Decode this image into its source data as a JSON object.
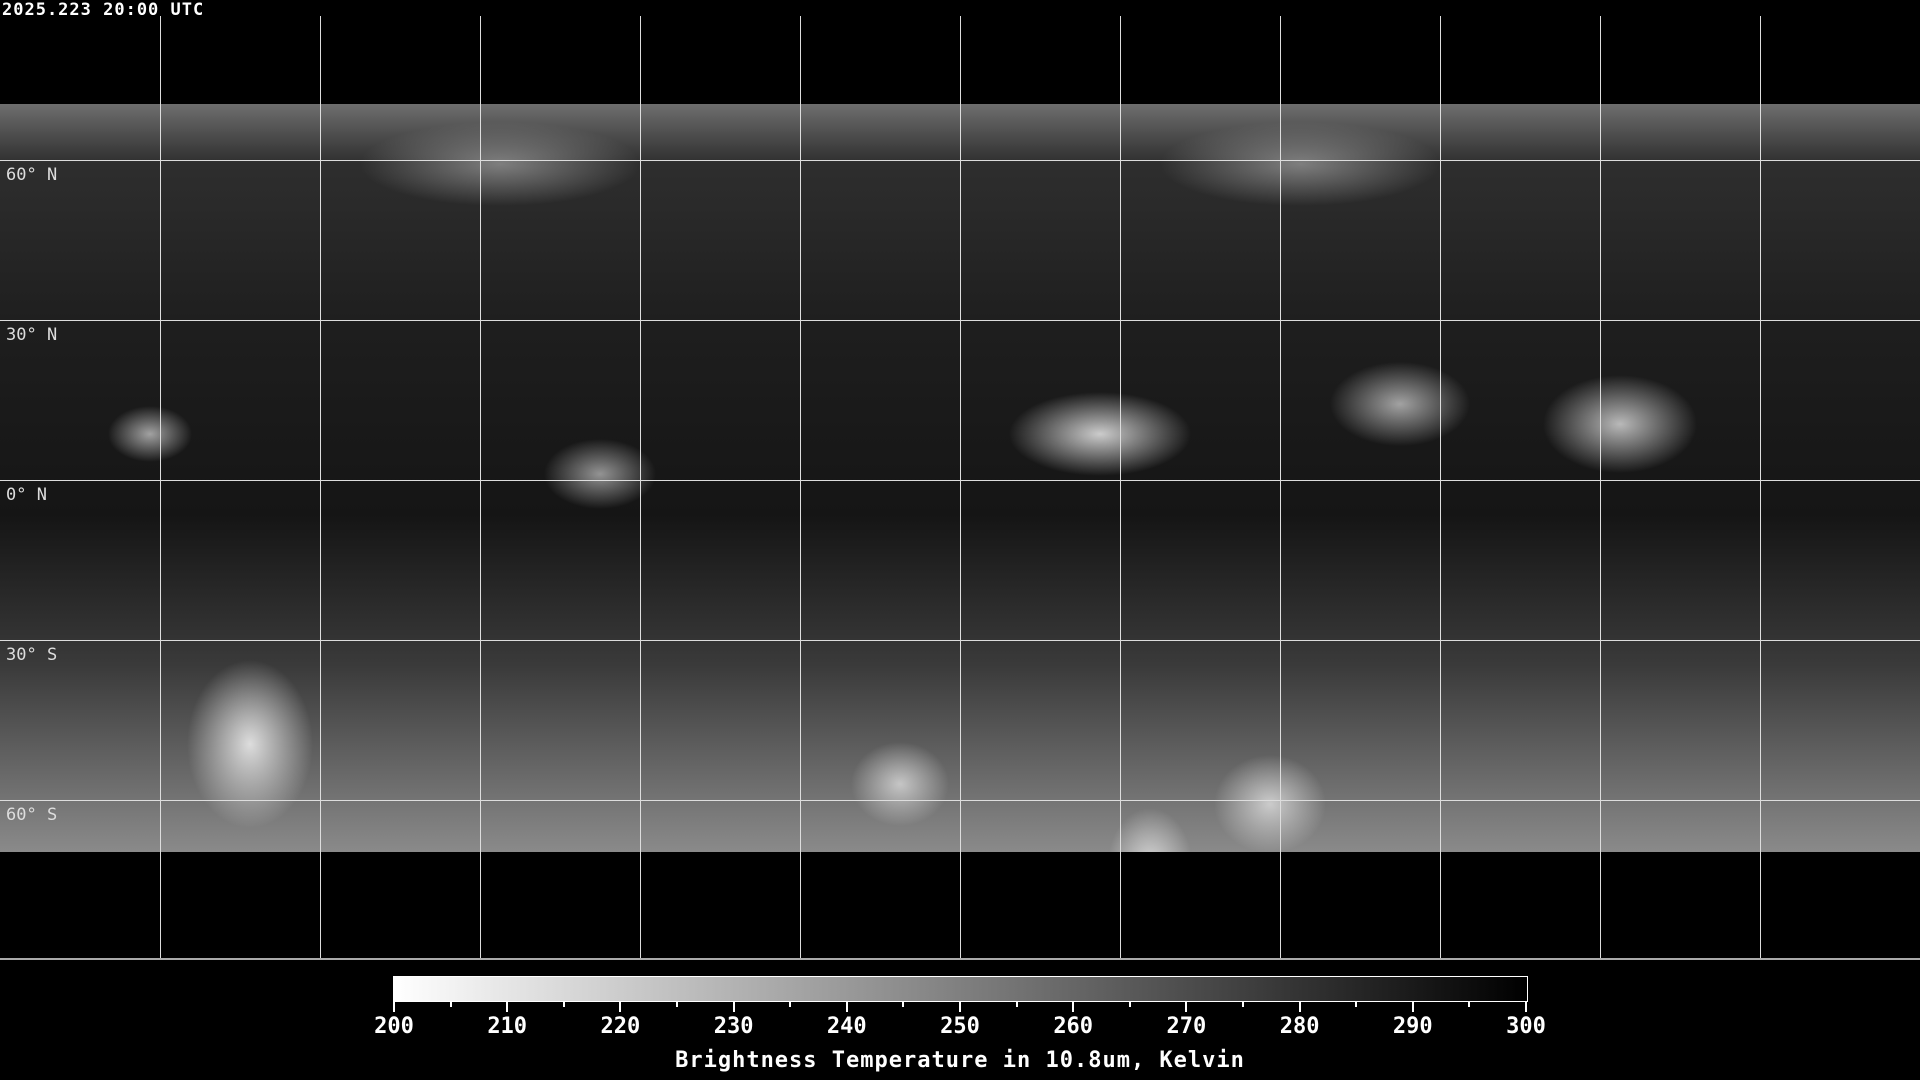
{
  "timestamp": "2025.223 20:00 UTC",
  "map": {
    "projection": "equirectangular",
    "longitude_gridlines_deg": [
      -150,
      -120,
      -90,
      -60,
      -30,
      0,
      30,
      60,
      90,
      120,
      150
    ],
    "latitude_gridlines": [
      {
        "lat": 60,
        "label": "60° N"
      },
      {
        "lat": 30,
        "label": "30° N"
      },
      {
        "lat": 0,
        "label": "0° N"
      },
      {
        "lat": -30,
        "label": "30° S"
      },
      {
        "lat": -60,
        "label": "60° S"
      }
    ]
  },
  "colorbar": {
    "min": 200,
    "max": 300,
    "colormap": [
      "#ffffff",
      "#000000"
    ],
    "tick_labels": [
      "200",
      "210",
      "220",
      "230",
      "240",
      "250",
      "260",
      "270",
      "280",
      "290",
      "300"
    ],
    "title": "Brightness Temperature in 10.8um, Kelvin"
  }
}
